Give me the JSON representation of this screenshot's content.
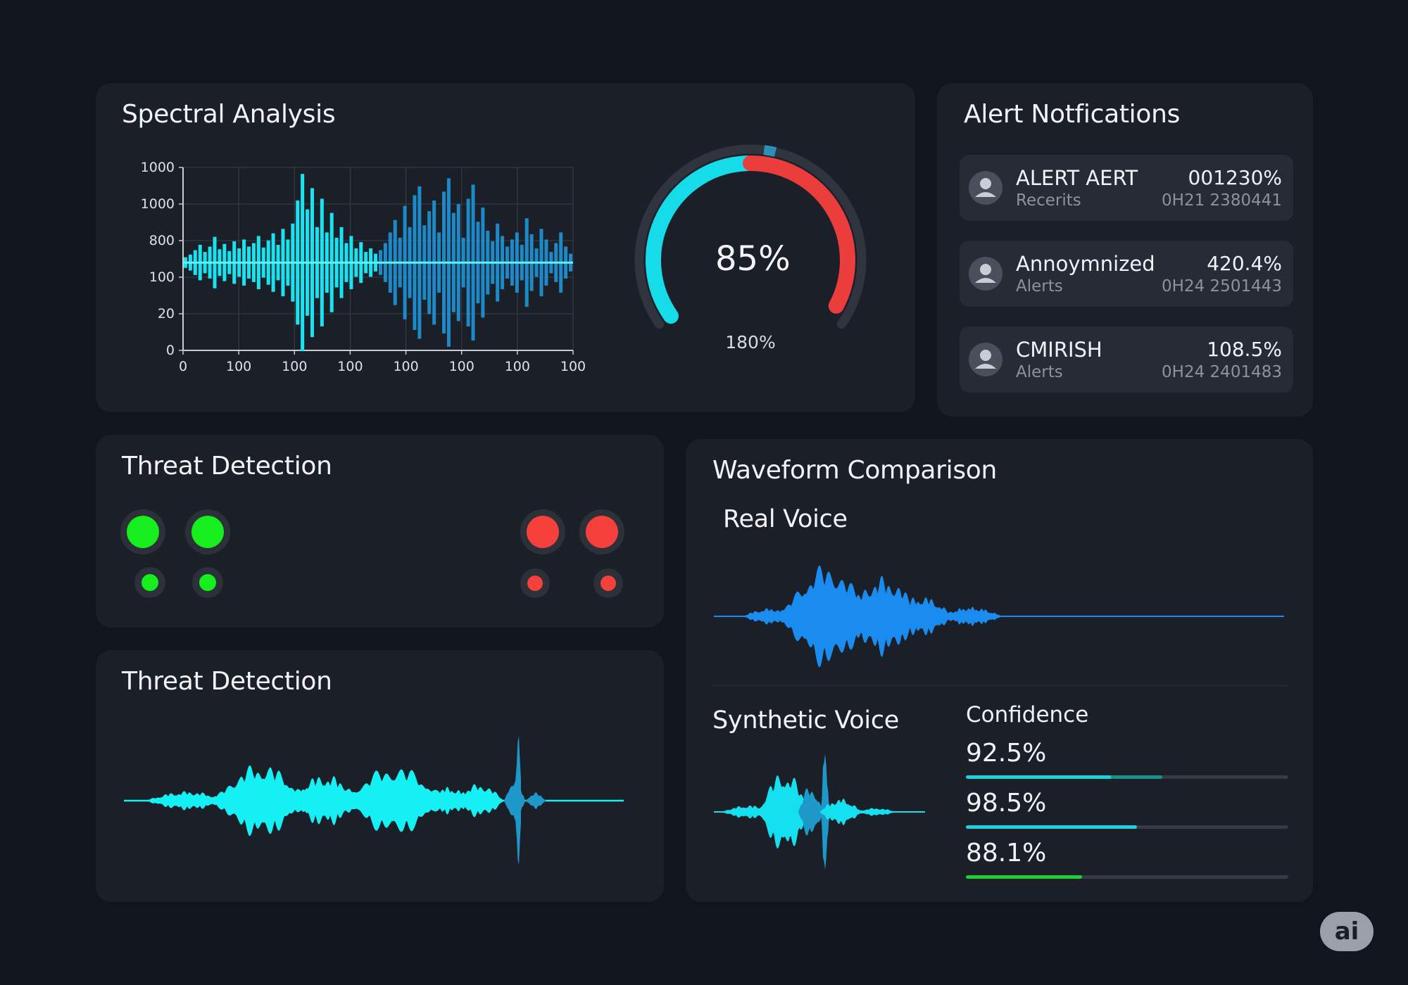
{
  "spectral": {
    "title": "Spectral Analysis",
    "chart_data": {
      "type": "bar",
      "y_tick_labels": [
        "1000",
        "1000",
        "800",
        "100",
        "20",
        "0"
      ],
      "x_tick_labels": [
        "0",
        "100",
        "100",
        "100",
        "100",
        "100",
        "100",
        "100"
      ],
      "series": [
        {
          "color": "#19e3f0",
          "values": [
            6,
            9,
            14,
            20,
            12,
            18,
            29,
            15,
            21,
            13,
            24,
            16,
            26,
            18,
            22,
            30,
            17,
            25,
            33,
            20,
            38,
            26,
            44,
            70,
            100,
            60,
            84,
            40,
            72,
            34,
            56,
            28,
            40,
            22,
            30,
            16,
            23,
            12,
            16,
            10
          ]
        },
        {
          "color": "#1f8fd0",
          "values": [
            14,
            22,
            34,
            48,
            28,
            64,
            40,
            76,
            86,
            42,
            58,
            70,
            34,
            80,
            95,
            56,
            66,
            28,
            72,
            88,
            46,
            62,
            36,
            24,
            44,
            30,
            18,
            26,
            34,
            20,
            50,
            32,
            16,
            38,
            26,
            12,
            22,
            34,
            18,
            10
          ]
        }
      ]
    },
    "gauge": {
      "value_label": "85%",
      "sub_label": "180%",
      "value": 0.85,
      "colors": {
        "left": "#16dbe8",
        "right": "#ec3d3d",
        "track": "#2f343e",
        "marker": "#2c8fb8"
      }
    }
  },
  "alerts": {
    "title": "Alert Notfications",
    "items": [
      {
        "title": "ALERT AERT",
        "subtitle": "Recerits",
        "value": "001230%",
        "id": "0H21 2380441"
      },
      {
        "title": "Annoymnized",
        "subtitle": "Alerts",
        "value": "420.4%",
        "id": "0H24 2501443"
      },
      {
        "title": "CMIRISH",
        "subtitle": "Alerts",
        "value": "108.5%",
        "id": "0H24 2401483"
      }
    ],
    "icon": "user-avatar-icon"
  },
  "threat_status": {
    "title": "Threat Detection",
    "safe_color": "#16ee1e",
    "danger_color": "#f5403b"
  },
  "threat_wave": {
    "title": "Threat Detection",
    "colors": {
      "main": "#15f0f5",
      "secondary": "#1d98c8"
    }
  },
  "waveform": {
    "title": "Waveform Comparison",
    "real_label": "Real Voice",
    "synthetic_label": "Synthetic Voice",
    "real_color": "#1a8cf0",
    "synthetic_color": "#14e0ef",
    "confidence": {
      "title": "Confidence",
      "items": [
        {
          "label": "92.5%",
          "value": 0.925,
          "colors": [
            "#1ecfdc",
            "#1c8f8a"
          ],
          "split": 0.45,
          "fill": 0.61
        },
        {
          "label": "98.5%",
          "value": 0.985,
          "colors": [
            "#1ecfdc"
          ],
          "split": 1,
          "fill": 0.53
        },
        {
          "label": "88.1%",
          "value": 0.881,
          "colors": [
            "#1fd034"
          ],
          "split": 1,
          "fill": 0.36
        }
      ]
    }
  },
  "badge": {
    "label": "ai"
  }
}
